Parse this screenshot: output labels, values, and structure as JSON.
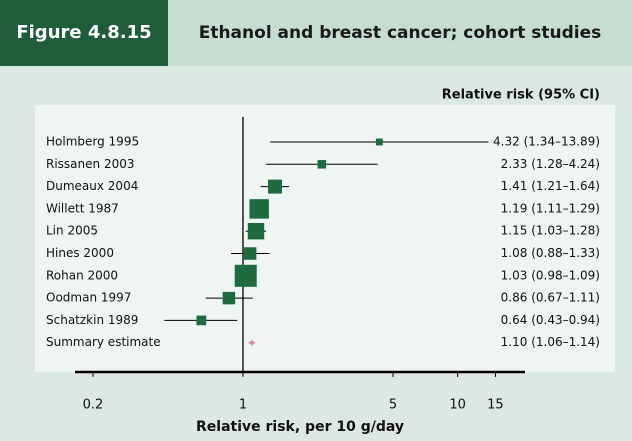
{
  "chart_data": {
    "type": "forest",
    "figure_label": "Figure 4.8.15",
    "title": "Ethanol and breast cancer; cohort studies",
    "column_header": "Relative risk (95% CI)",
    "xlabel": "Relative risk, per 10 g/day",
    "categories": [
      "Holmberg 1995",
      "Rissanen 2003",
      "Dumeaux 2004",
      "Willett 1987",
      "Lin 2005",
      "Hines 2000",
      "Rohan 2000",
      "Oodman 1997",
      "Schatzkin 1989"
    ],
    "values": [
      4.32,
      2.33,
      1.41,
      1.19,
      1.15,
      1.08,
      1.03,
      0.86,
      0.64
    ],
    "lower": [
      1.34,
      1.28,
      1.21,
      1.11,
      1.03,
      0.88,
      0.98,
      0.67,
      0.43
    ],
    "upper": [
      13.89,
      4.24,
      1.64,
      1.29,
      1.28,
      1.33,
      1.09,
      1.11,
      0.94
    ],
    "value_labels": [
      "4.32 (1.34–13.89)",
      "2.33 (1.28–4.24)",
      "1.41 (1.21–1.64)",
      "1.19 (1.11–1.29)",
      "1.15 (1.03–1.28)",
      "1.08 (0.88–1.33)",
      "1.03 (0.98–1.09)",
      "0.86 (0.67–1.11)",
      "0.64 (0.43–0.94)"
    ],
    "weights": [
      0.5,
      1,
      4,
      9,
      6,
      3,
      12,
      3,
      1.5
    ],
    "summary": {
      "label": "Summary estimate",
      "value": 1.1,
      "lower": 1.06,
      "upper": 1.14,
      "value_label": "1.10 (1.06–1.14)",
      "color": "#d98aa4"
    },
    "color": "#1d6b3e",
    "xscale": "log",
    "xlim": [
      0.165,
      20.6
    ],
    "xticks": [
      0.2,
      1,
      5,
      10,
      15
    ],
    "reference_line": 1
  }
}
